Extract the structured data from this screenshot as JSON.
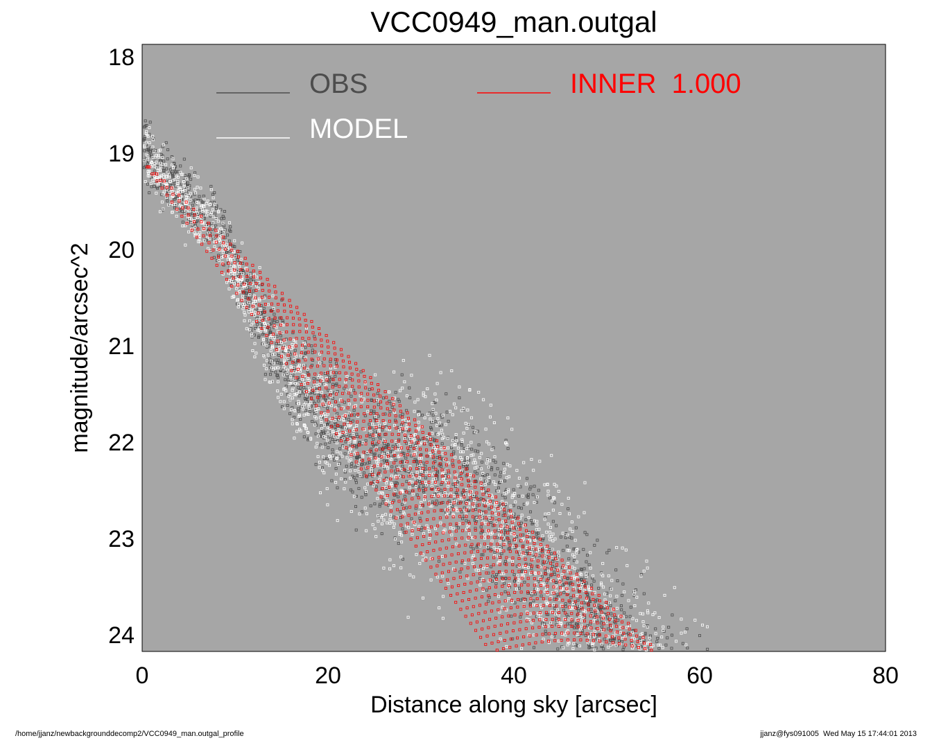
{
  "chart_data": {
    "type": "scatter",
    "title": "VCC0949_man.outgal",
    "xlabel": "Distance along sky [arcsec]",
    "ylabel": "magnitude/arcsec^2",
    "xlim": [
      0,
      80
    ],
    "ylim": [
      24.2,
      17.9
    ],
    "y_inverted": true,
    "x_ticks": [
      "0",
      "20",
      "40",
      "60",
      "80"
    ],
    "y_ticks": [
      "18",
      "19",
      "20",
      "21",
      "22",
      "23",
      "24"
    ],
    "grid": false,
    "legend_placement": "top",
    "background_color": "#a6a6a6",
    "series": [
      {
        "name": "OBS",
        "color": "#4d4d4d",
        "marker": "square-open",
        "profile": {
          "y_at_x0": 19.0,
          "slope_inner": 0.1,
          "y_floor_mean": 22.3,
          "floor_start_x": 30,
          "spread_y": 0.6
        },
        "x_range": [
          0,
          80
        ]
      },
      {
        "name": "MODEL",
        "color": "#ffffff",
        "marker": "square-open",
        "profile": {
          "y_at_x0": 19.05,
          "slope_inner": 0.1,
          "y_floor_mean": 22.4,
          "floor_start_x": 30,
          "spread_y": 0.8
        },
        "x_range": [
          0,
          80
        ]
      },
      {
        "name": "INNER  1.000",
        "color": "#ff0000",
        "marker": "square-open",
        "band": {
          "x0": 0,
          "y0": 19.1,
          "upper_end": [
            55.5,
            24.2
          ],
          "lower_end": [
            37.5,
            24.2
          ]
        },
        "x_range": [
          0,
          55.5
        ]
      }
    ]
  },
  "legend": {
    "obs_label": "OBS",
    "model_label": "MODEL",
    "inner_label": "INNER  1.000",
    "obs_color": "#4d4d4d",
    "model_color": "#ffffff",
    "inner_color": "#ff0000"
  },
  "footer": {
    "path": "/home/jjanz/newbackgrounddecomp2/VCC0949_man.outgal_profile",
    "stamp": "jjanz@fys091005  Wed May 15 17:44:01 2013"
  }
}
